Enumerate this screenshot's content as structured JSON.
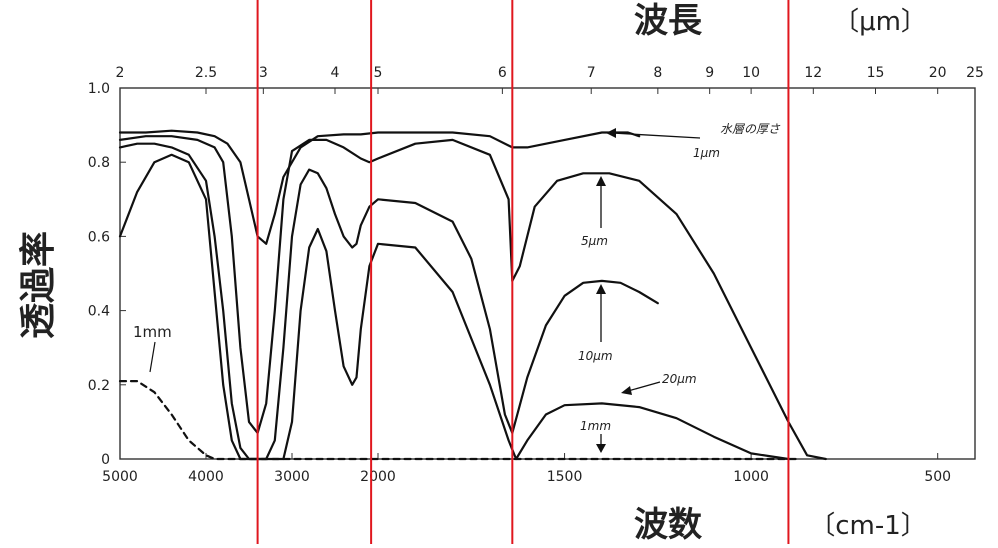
{
  "chart_data": {
    "type": "line",
    "top_axis": {
      "title": "波長",
      "unit": "〔μm〕",
      "ticks": [
        "2",
        "2.5",
        "3",
        "4",
        "5",
        "6",
        "7",
        "8",
        "9",
        "10",
        "12",
        "15",
        "20",
        "25"
      ],
      "tick_values": [
        2,
        2.5,
        3,
        4,
        5,
        6,
        7,
        8,
        9,
        10,
        12,
        15,
        20,
        25
      ]
    },
    "x_axis": {
      "title": "波数",
      "unit": "〔cm-1〕",
      "ticks": [
        "5000",
        "4000",
        "3000",
        "2000",
        "1500",
        "1000",
        "500"
      ],
      "tick_values": [
        5000,
        4000,
        3000,
        2000,
        1500,
        1000,
        500
      ]
    },
    "y_axis": {
      "title": "透過率",
      "ticks": [
        "1.0",
        "0.8",
        "0.6",
        "0.4",
        "0.2",
        "0"
      ],
      "tick_values": [
        1.0,
        0.8,
        0.6,
        0.4,
        0.2,
        0
      ],
      "ylim": [
        0,
        1.0
      ]
    },
    "legend_title": "水層の厚さ",
    "series": [
      {
        "name": "1μm",
        "points": [
          [
            5000,
            0.88
          ],
          [
            4700,
            0.88
          ],
          [
            4400,
            0.885
          ],
          [
            4100,
            0.88
          ],
          [
            3900,
            0.87
          ],
          [
            3750,
            0.85
          ],
          [
            3600,
            0.8
          ],
          [
            3500,
            0.7
          ],
          [
            3400,
            0.6
          ],
          [
            3300,
            0.58
          ],
          [
            3200,
            0.66
          ],
          [
            3100,
            0.76
          ],
          [
            2900,
            0.84
          ],
          [
            2700,
            0.87
          ],
          [
            2400,
            0.875
          ],
          [
            2200,
            0.875
          ],
          [
            2000,
            0.88
          ],
          [
            1800,
            0.88
          ],
          [
            1700,
            0.87
          ],
          [
            1640,
            0.84
          ],
          [
            1600,
            0.84
          ],
          [
            1500,
            0.86
          ],
          [
            1400,
            0.88
          ],
          [
            1330,
            0.88
          ],
          [
            1300,
            0.87
          ]
        ]
      },
      {
        "name": "5μm",
        "points": [
          [
            5000,
            0.86
          ],
          [
            4700,
            0.87
          ],
          [
            4400,
            0.87
          ],
          [
            4100,
            0.86
          ],
          [
            3900,
            0.84
          ],
          [
            3800,
            0.8
          ],
          [
            3700,
            0.6
          ],
          [
            3600,
            0.3
          ],
          [
            3500,
            0.1
          ],
          [
            3400,
            0.07
          ],
          [
            3300,
            0.15
          ],
          [
            3200,
            0.4
          ],
          [
            3100,
            0.7
          ],
          [
            3000,
            0.83
          ],
          [
            2800,
            0.86
          ],
          [
            2600,
            0.86
          ],
          [
            2400,
            0.84
          ],
          [
            2200,
            0.81
          ],
          [
            2100,
            0.8
          ],
          [
            2000,
            0.81
          ],
          [
            1900,
            0.85
          ],
          [
            1800,
            0.86
          ],
          [
            1700,
            0.82
          ],
          [
            1650,
            0.7
          ],
          [
            1640,
            0.48
          ],
          [
            1620,
            0.52
          ],
          [
            1580,
            0.68
          ],
          [
            1520,
            0.75
          ],
          [
            1450,
            0.77
          ],
          [
            1380,
            0.77
          ],
          [
            1300,
            0.75
          ],
          [
            1200,
            0.66
          ],
          [
            1100,
            0.5
          ],
          [
            1000,
            0.3
          ],
          [
            900,
            0.1
          ],
          [
            850,
            0.01
          ],
          [
            800,
            0.0
          ]
        ]
      },
      {
        "name": "10μm",
        "points": [
          [
            5000,
            0.84
          ],
          [
            4800,
            0.85
          ],
          [
            4600,
            0.85
          ],
          [
            4400,
            0.84
          ],
          [
            4200,
            0.82
          ],
          [
            4000,
            0.75
          ],
          [
            3900,
            0.6
          ],
          [
            3800,
            0.4
          ],
          [
            3700,
            0.15
          ],
          [
            3600,
            0.03
          ],
          [
            3500,
            0.0
          ],
          [
            3300,
            0.0
          ],
          [
            3200,
            0.05
          ],
          [
            3100,
            0.3
          ],
          [
            3000,
            0.6
          ],
          [
            2900,
            0.74
          ],
          [
            2800,
            0.78
          ],
          [
            2700,
            0.77
          ],
          [
            2600,
            0.73
          ],
          [
            2500,
            0.66
          ],
          [
            2400,
            0.6
          ],
          [
            2300,
            0.57
          ],
          [
            2250,
            0.58
          ],
          [
            2200,
            0.63
          ],
          [
            2100,
            0.68
          ],
          [
            2000,
            0.7
          ],
          [
            1900,
            0.69
          ],
          [
            1800,
            0.64
          ],
          [
            1750,
            0.54
          ],
          [
            1700,
            0.35
          ],
          [
            1660,
            0.12
          ],
          [
            1640,
            0.07
          ],
          [
            1600,
            0.22
          ],
          [
            1550,
            0.36
          ],
          [
            1500,
            0.44
          ],
          [
            1450,
            0.475
          ],
          [
            1400,
            0.48
          ],
          [
            1350,
            0.475
          ],
          [
            1300,
            0.45
          ],
          [
            1250,
            0.42
          ]
        ]
      },
      {
        "name": "20μm",
        "points": [
          [
            5000,
            0.6
          ],
          [
            4800,
            0.72
          ],
          [
            4600,
            0.8
          ],
          [
            4400,
            0.82
          ],
          [
            4200,
            0.8
          ],
          [
            4000,
            0.7
          ],
          [
            3900,
            0.45
          ],
          [
            3800,
            0.2
          ],
          [
            3700,
            0.05
          ],
          [
            3600,
            0.0
          ],
          [
            3100,
            0.0
          ],
          [
            3000,
            0.1
          ],
          [
            2900,
            0.4
          ],
          [
            2800,
            0.57
          ],
          [
            2700,
            0.62
          ],
          [
            2600,
            0.56
          ],
          [
            2500,
            0.4
          ],
          [
            2400,
            0.25
          ],
          [
            2300,
            0.2
          ],
          [
            2250,
            0.22
          ],
          [
            2200,
            0.35
          ],
          [
            2100,
            0.52
          ],
          [
            2000,
            0.58
          ],
          [
            1900,
            0.57
          ],
          [
            1800,
            0.45
          ],
          [
            1700,
            0.2
          ],
          [
            1650,
            0.05
          ],
          [
            1630,
            0.0
          ],
          [
            1600,
            0.05
          ],
          [
            1550,
            0.12
          ],
          [
            1500,
            0.145
          ],
          [
            1400,
            0.15
          ],
          [
            1300,
            0.14
          ],
          [
            1200,
            0.11
          ],
          [
            1100,
            0.06
          ],
          [
            1000,
            0.015
          ],
          [
            900,
            0.0
          ]
        ]
      },
      {
        "name": "1mm",
        "points": [
          [
            5000,
            0.21
          ],
          [
            4800,
            0.21
          ],
          [
            4600,
            0.18
          ],
          [
            4400,
            0.12
          ],
          [
            4200,
            0.05
          ],
          [
            4000,
            0.01
          ],
          [
            3900,
            0.0
          ],
          [
            3000,
            0.0
          ],
          [
            1000,
            0.0
          ],
          [
            880,
            0.0
          ]
        ]
      }
    ],
    "annotations": [
      {
        "text": "1μm",
        "arrow": "left"
      },
      {
        "text": "5μm",
        "arrow": "up"
      },
      {
        "text": "10μm",
        "arrow": "up"
      },
      {
        "text": "20μm",
        "arrow": "left"
      },
      {
        "text": "1mm",
        "arrow": "down"
      },
      {
        "text": "1mm",
        "arrow": "none"
      }
    ],
    "reference_lines_cm1": [
      3400,
      2080,
      1640,
      900
    ],
    "reference_line_color": "#e0161e",
    "grid": false
  }
}
